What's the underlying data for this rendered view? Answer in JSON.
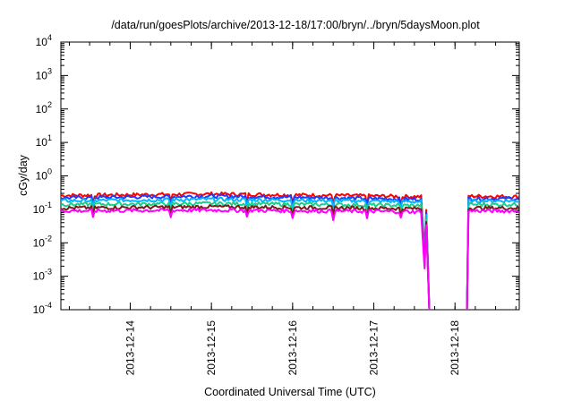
{
  "chart_data": {
    "type": "line",
    "title": "/data/run/goesPlots/archive/2013-12-18/17:00/bryn/../bryn/5daysMoon.plot",
    "xlabel": "Coordinated Universal Time (UTC)",
    "ylabel": "cGy/day",
    "yscale": "log",
    "ylim": [
      0.0001,
      10000
    ],
    "xlim": [
      "2013-12-13T03:30",
      "2013-12-18T19:00"
    ],
    "y_ticks": [
      {
        "value": 0.0001,
        "base": "10",
        "exp": "-4"
      },
      {
        "value": 0.001,
        "base": "10",
        "exp": "-3"
      },
      {
        "value": 0.01,
        "base": "10",
        "exp": "-2"
      },
      {
        "value": 0.1,
        "base": "10",
        "exp": "-1"
      },
      {
        "value": 1,
        "base": "10",
        "exp": "0"
      },
      {
        "value": 10,
        "base": "10",
        "exp": "1"
      },
      {
        "value": 100,
        "base": "10",
        "exp": "2"
      },
      {
        "value": 1000,
        "base": "10",
        "exp": "3"
      },
      {
        "value": 10000,
        "base": "10",
        "exp": "4"
      }
    ],
    "x_ticks": [
      "2013-12-14",
      "2013-12-15",
      "2013-12-16",
      "2013-12-17",
      "2013-12-18"
    ],
    "grid": false,
    "legend": "none",
    "series": [
      {
        "color": "#ff0000",
        "level": 0.26,
        "gap_start": "2013-12-17T14:00",
        "gap_end": "2013-12-18T04:00",
        "values": [
          [
            "2013-12-13T03:30",
            0.26
          ],
          [
            "2013-12-15T00:00",
            0.29
          ],
          [
            "2013-12-17T14:00",
            0.24
          ],
          [
            "2013-12-18T04:00",
            0.25
          ],
          [
            "2013-12-18T19:00",
            0.24
          ]
        ]
      },
      {
        "color": "#1e3cff",
        "level": 0.22,
        "gap_start": "2013-12-17T14:00",
        "gap_end": "2013-12-18T04:00",
        "values": [
          [
            "2013-12-13T03:30",
            0.22
          ],
          [
            "2013-12-15T00:00",
            0.25
          ],
          [
            "2013-12-17T14:00",
            0.2
          ],
          [
            "2013-12-18T04:00",
            0.21
          ],
          [
            "2013-12-18T19:00",
            0.21
          ]
        ]
      },
      {
        "color": "#00b4ff",
        "level": 0.18,
        "gap_start": "2013-12-17T14:00",
        "gap_end": "2013-12-18T04:00",
        "values": [
          [
            "2013-12-13T03:30",
            0.18
          ],
          [
            "2013-12-15T00:00",
            0.2
          ],
          [
            "2013-12-17T14:00",
            0.17
          ],
          [
            "2013-12-18T04:00",
            0.18
          ],
          [
            "2013-12-18T19:00",
            0.18
          ]
        ]
      },
      {
        "color": "#19d08c",
        "level": 0.14,
        "gap_start": "2013-12-17T14:00",
        "gap_end": "2013-12-18T04:00",
        "values": [
          [
            "2013-12-13T03:30",
            0.14
          ],
          [
            "2013-12-15T00:00",
            0.15
          ],
          [
            "2013-12-17T14:00",
            0.13
          ],
          [
            "2013-12-18T04:00",
            0.14
          ],
          [
            "2013-12-18T19:00",
            0.14
          ]
        ]
      },
      {
        "color": "#7a1a1a",
        "level": 0.11,
        "gap_start": "2013-12-17T14:00",
        "gap_end": "2013-12-18T04:00",
        "values": [
          [
            "2013-12-13T03:30",
            0.11
          ],
          [
            "2013-12-15T00:00",
            0.12
          ],
          [
            "2013-12-17T14:00",
            0.105
          ],
          [
            "2013-12-18T04:00",
            0.11
          ],
          [
            "2013-12-18T19:00",
            0.11
          ]
        ]
      },
      {
        "color": "#ff00ff",
        "level": 0.09,
        "gap_start": "2013-12-17T14:00",
        "gap_end": "2013-12-18T04:00",
        "values": [
          [
            "2013-12-13T03:30",
            0.09
          ],
          [
            "2013-12-15T00:00",
            0.095
          ],
          [
            "2013-12-17T14:00",
            0.085
          ],
          [
            "2013-12-18T04:00",
            0.09
          ],
          [
            "2013-12-18T19:00",
            0.09
          ]
        ]
      }
    ]
  }
}
